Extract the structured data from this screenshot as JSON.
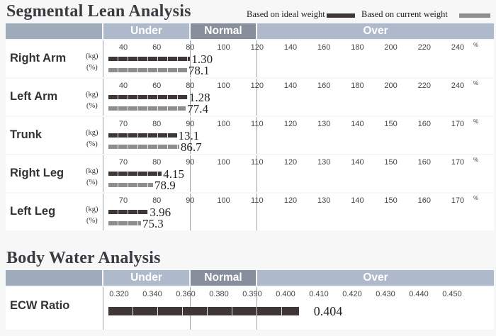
{
  "segmental": {
    "title": "Segmental Lean Analysis",
    "legend": {
      "ideal": "Based on ideal weight",
      "current": "Based on current weight"
    },
    "headers": {
      "under": "Under",
      "normal": "Normal",
      "over": "Over"
    },
    "units": {
      "kg": "(kg)",
      "pct": "(%)",
      "pct_sign": "%"
    },
    "rows": [
      {
        "label": "Right Arm",
        "ticks": [
          "40",
          "60",
          "80",
          "100",
          "120",
          "140",
          "160",
          "180",
          "200",
          "220",
          "240"
        ],
        "scale": [
          40,
          240
        ],
        "kg": "1.30",
        "pct": "78.1",
        "ideal_pct": 80,
        "current_pct": 78.1
      },
      {
        "label": "Left Arm",
        "ticks": [
          "40",
          "60",
          "80",
          "100",
          "120",
          "140",
          "160",
          "180",
          "200",
          "220",
          "240"
        ],
        "scale": [
          40,
          240
        ],
        "kg": "1.28",
        "pct": "77.4",
        "ideal_pct": 78.5,
        "current_pct": 77.4
      },
      {
        "label": "Trunk",
        "ticks": [
          "70",
          "80",
          "90",
          "100",
          "110",
          "120",
          "130",
          "140",
          "150",
          "160",
          "170"
        ],
        "scale": [
          70,
          170
        ],
        "kg": "13.1",
        "pct": "86.7",
        "ideal_pct": 86,
        "current_pct": 86.7
      },
      {
        "label": "Right Leg",
        "ticks": [
          "70",
          "80",
          "90",
          "100",
          "110",
          "120",
          "130",
          "140",
          "150",
          "160",
          "170"
        ],
        "scale": [
          70,
          170
        ],
        "kg": "4.15",
        "pct": "78.9",
        "ideal_pct": 81.5,
        "current_pct": 78.9
      },
      {
        "label": "Left Leg",
        "ticks": [
          "70",
          "80",
          "90",
          "100",
          "110",
          "120",
          "130",
          "140",
          "150",
          "160",
          "170"
        ],
        "scale": [
          70,
          170
        ],
        "kg": "3.96",
        "pct": "75.3",
        "ideal_pct": 77.5,
        "current_pct": 75.3
      }
    ]
  },
  "water": {
    "title": "Body Water Analysis",
    "headers": {
      "under": "Under",
      "normal": "Normal",
      "over": "Over"
    },
    "row": {
      "label": "ECW Ratio",
      "ticks": [
        "0.320",
        "0.340",
        "0.360",
        "0.380",
        "0.390",
        "0.400",
        "0.410",
        "0.420",
        "0.430",
        "0.440",
        "0.450"
      ],
      "value": "0.404",
      "value_num": 0.404
    }
  }
}
